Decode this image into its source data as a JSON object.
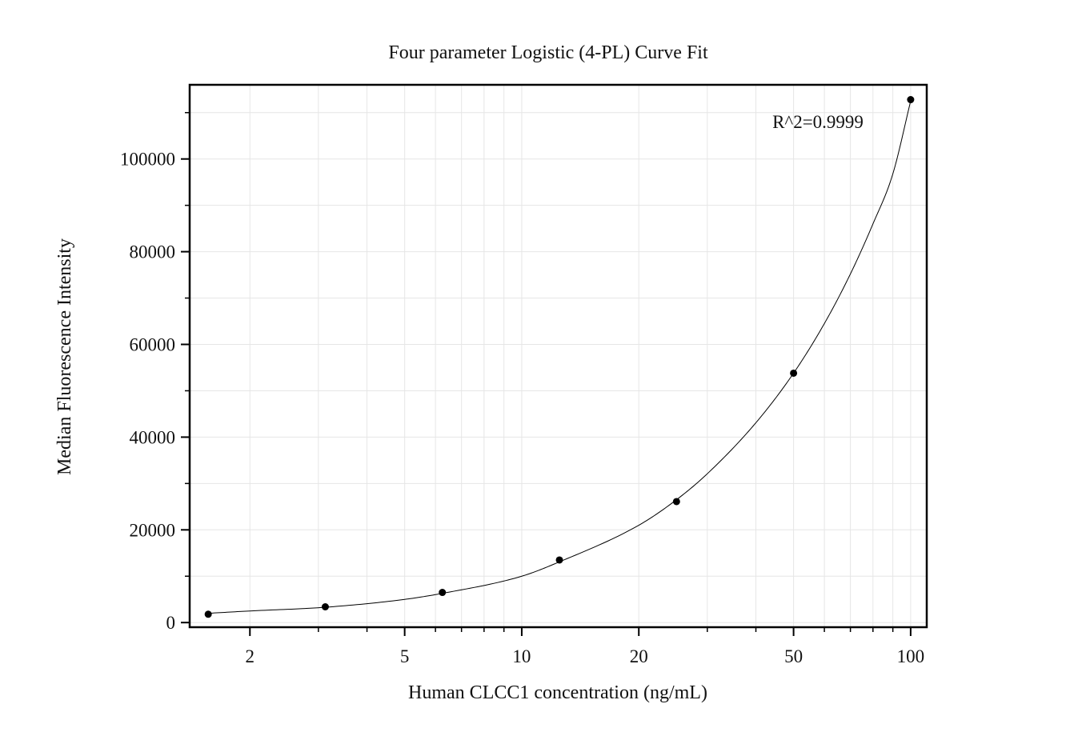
{
  "chart_data": {
    "type": "scatter",
    "title": "Four parameter Logistic (4-PL) Curve Fit",
    "xlabel": "Human CLCC1 concentration (ng/mL)",
    "ylabel": "Median Fluorescence Intensity",
    "x_scale": "log",
    "xlim": [
      1.4,
      110
    ],
    "ylim": [
      -1000,
      116000
    ],
    "x_ticks": [
      2,
      5,
      10,
      20,
      50,
      100
    ],
    "x_tick_labels": [
      "2",
      "5",
      "10",
      "20",
      "50",
      "100"
    ],
    "y_ticks": [
      0,
      20000,
      40000,
      60000,
      80000,
      100000
    ],
    "y_tick_labels": [
      "0",
      "20000",
      "40000",
      "60000",
      "80000",
      "100000"
    ],
    "grid": true,
    "annotation": "R^2=0.9999",
    "series": [
      {
        "type": "scatter",
        "x": [
          1.5625,
          3.125,
          6.25,
          12.5,
          25,
          50,
          100
        ],
        "y": [
          1800,
          3400,
          6500,
          13500,
          26100,
          53800,
          112800
        ]
      },
      {
        "type": "line",
        "x": [
          1.5625,
          2,
          3.125,
          5,
          6.25,
          10,
          12.5,
          20,
          25,
          30,
          40,
          50,
          60,
          70,
          80,
          90,
          100
        ],
        "y": [
          2000,
          2500,
          3300,
          5000,
          6300,
          10000,
          13100,
          21000,
          26500,
          32100,
          43100,
          53800,
          64500,
          75200,
          86000,
          96800,
          112500
        ]
      }
    ],
    "colors": {
      "points": "#000000",
      "curve": "#000000",
      "grid": "#e6e6e6",
      "frame": "#000000"
    }
  }
}
